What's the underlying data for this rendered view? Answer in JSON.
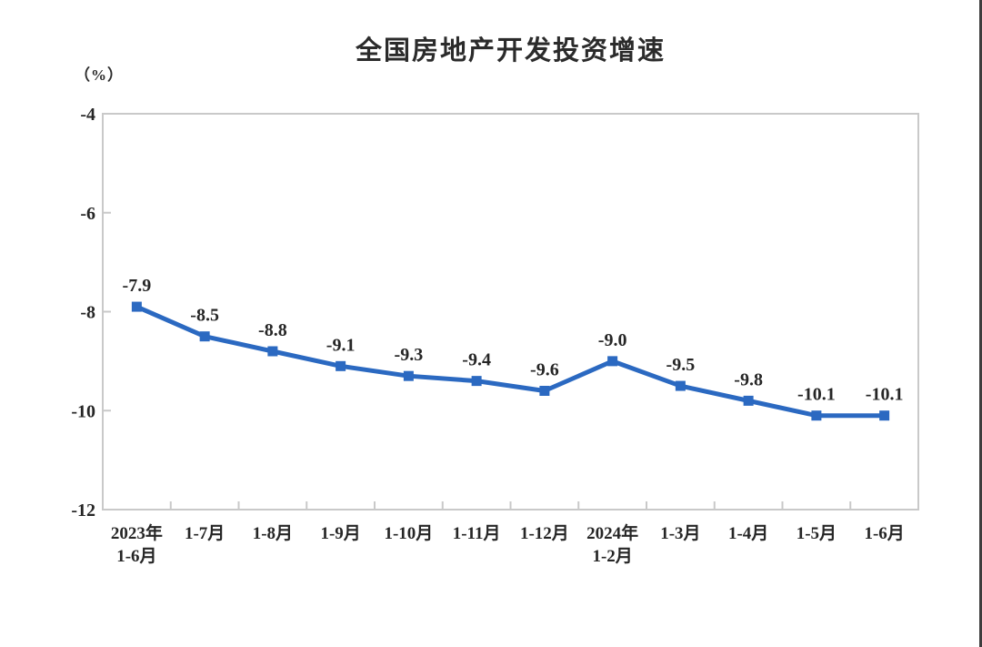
{
  "chart_data": {
    "type": "line",
    "title": "全国房地产开发投资增速",
    "unit_label": "（%）",
    "categories": [
      "2023年\n1-6月",
      "1-7月",
      "1-8月",
      "1-9月",
      "1-10月",
      "1-11月",
      "1-12月",
      "2024年\n1-2月",
      "1-3月",
      "1-4月",
      "1-5月",
      "1-6月"
    ],
    "values": [
      -7.9,
      -8.5,
      -8.8,
      -9.1,
      -9.3,
      -9.4,
      -9.6,
      -9.0,
      -9.5,
      -9.8,
      -10.1,
      -10.1
    ],
    "point_labels": [
      "-7.9",
      "-8.5",
      "-8.8",
      "-9.1",
      "-9.3",
      "-9.4",
      "-9.6",
      "-9.0",
      "-9.5",
      "-9.8",
      "-10.1",
      "-10.1"
    ],
    "ylim": [
      -12,
      -4
    ],
    "yticks": [
      -4,
      -6,
      -8,
      -10,
      -12
    ],
    "grid": false,
    "legend": null,
    "line_color": "#2b69c1",
    "marker_color": "#2b69c1",
    "axis_color": "#c9c9c9",
    "text_color": "#262626"
  }
}
